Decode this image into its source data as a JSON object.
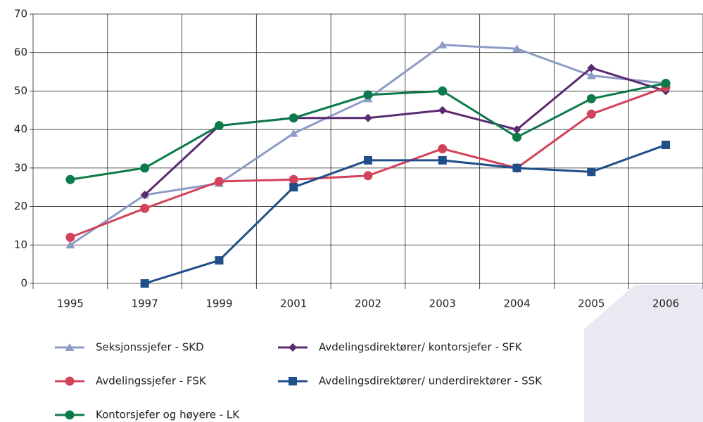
{
  "chart_data": {
    "type": "line",
    "categories": [
      "1995",
      "1997",
      "1999",
      "2001",
      "2002",
      "2003",
      "2004",
      "2005",
      "2006"
    ],
    "series": [
      {
        "name": "Seksjonssjefer -  SKD",
        "color": "#8d9cc6",
        "marker": "triangle",
        "values": [
          10,
          23,
          26,
          39,
          48,
          62,
          61,
          54,
          52
        ]
      },
      {
        "name": "Avdelingsdirektører/ kontorsjefer - SFK",
        "color": "#5c2a70",
        "marker": "diamond",
        "values": [
          null,
          23,
          41,
          43,
          43,
          45,
          40,
          56,
          50
        ]
      },
      {
        "name": "Avdelingssjefer - FSK",
        "color": "#d2435b",
        "marker": "circle",
        "values": [
          12,
          19.5,
          26.5,
          27,
          28,
          35,
          30,
          44,
          51
        ]
      },
      {
        "name": "Avdelingsdirektører/ underdirektører - SSK",
        "color": "#1f4e88",
        "marker": "square",
        "values": [
          null,
          0,
          6,
          25,
          32,
          32,
          30,
          29,
          36
        ]
      },
      {
        "name": "Kontorsjefer og høyere - LK",
        "color": "#0d7a49",
        "marker": "circle",
        "values": [
          27,
          30,
          41,
          43,
          49,
          50,
          38,
          48,
          52
        ]
      }
    ],
    "ylim": [
      0,
      70
    ],
    "yticks": [
      0,
      10,
      20,
      30,
      40,
      50,
      60,
      70
    ],
    "grid": true
  }
}
